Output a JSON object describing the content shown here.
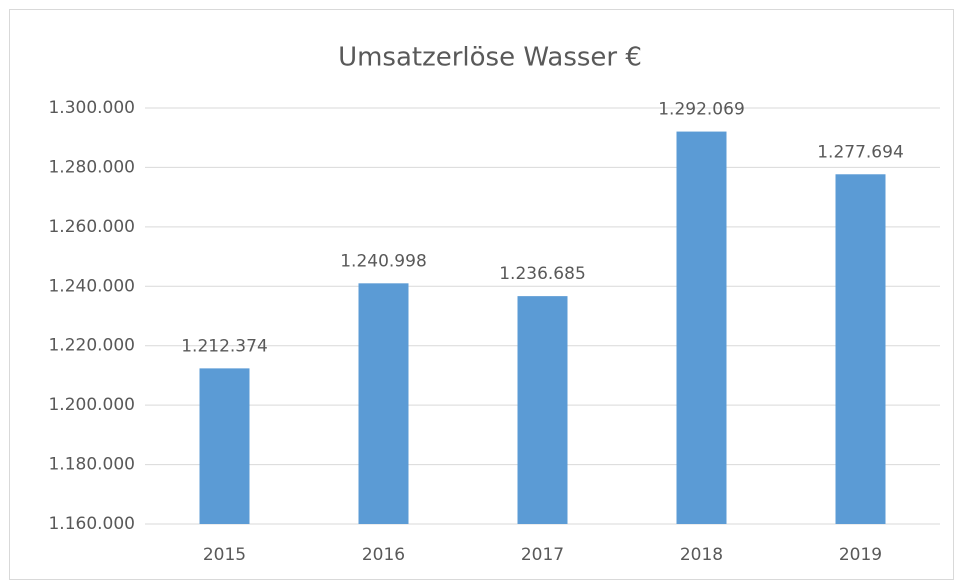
{
  "chart_data": {
    "type": "bar",
    "title": "Umsatzerlöse Wasser €",
    "categories": [
      "2015",
      "2016",
      "2017",
      "2018",
      "2019"
    ],
    "values": [
      1212374,
      1240998,
      1236685,
      1292069,
      1277694
    ],
    "value_labels": [
      "1.212.374",
      "1.240.998",
      "1.236.685",
      "1.292.069",
      "1.277.694"
    ],
    "color": "#5b9bd5",
    "ylim": [
      1160000,
      1300000
    ],
    "yticks": [
      {
        "value": 1160000,
        "label": "1.160.000"
      },
      {
        "value": 1180000,
        "label": "1.180.000"
      },
      {
        "value": 1200000,
        "label": "1.200.000"
      },
      {
        "value": 1220000,
        "label": "1.220.000"
      },
      {
        "value": 1240000,
        "label": "1.240.000"
      },
      {
        "value": 1260000,
        "label": "1.260.000"
      },
      {
        "value": 1280000,
        "label": "1.280.000"
      },
      {
        "value": 1300000,
        "label": "1.300.000"
      }
    ],
    "grid": true
  }
}
